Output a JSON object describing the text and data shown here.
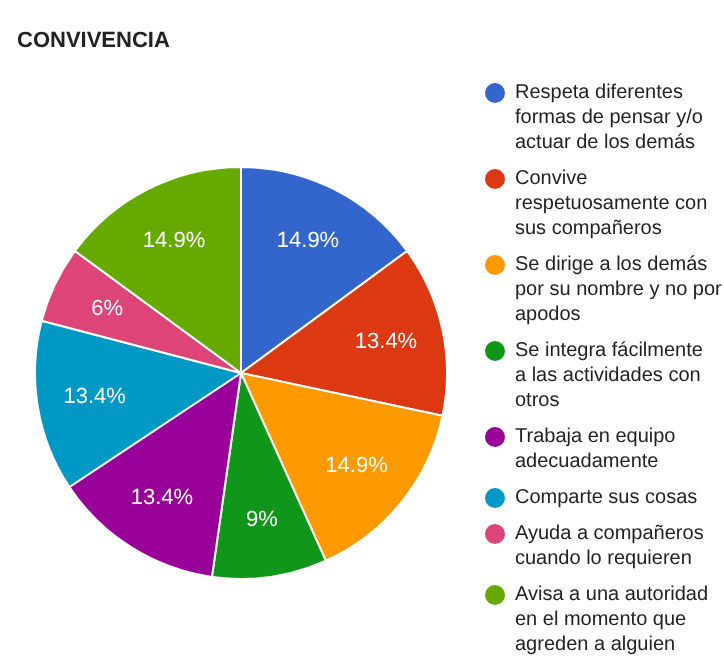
{
  "chart_data": {
    "type": "pie",
    "title": "CONVIVENCIA",
    "categories": [
      "Respeta diferentes formas de pensar y/o actuar de los demás",
      "Convive respetuosamente con sus compañeros",
      "Se dirige a los demás por su nombre y no por apodos",
      "Se integra fácilmente a las actividades con otros",
      "Trabaja en equipo adecuadamente",
      "Comparte sus cosas",
      "Ayuda a compañeros cuando lo requieren",
      "Avisa a una autoridad en el momento que agreden a alguien"
    ],
    "values": [
      14.9,
      13.4,
      14.9,
      9,
      13.4,
      13.4,
      6,
      14.9
    ],
    "value_labels": [
      "14.9%",
      "13.4%",
      "14.9%",
      "9%",
      "13.4%",
      "13.4%",
      "6%",
      "14.9%"
    ],
    "colors": [
      "#3366cc",
      "#dc3912",
      "#ff9900",
      "#109618",
      "#990099",
      "#0099c6",
      "#dd4477",
      "#66aa00"
    ],
    "legend": "right"
  }
}
